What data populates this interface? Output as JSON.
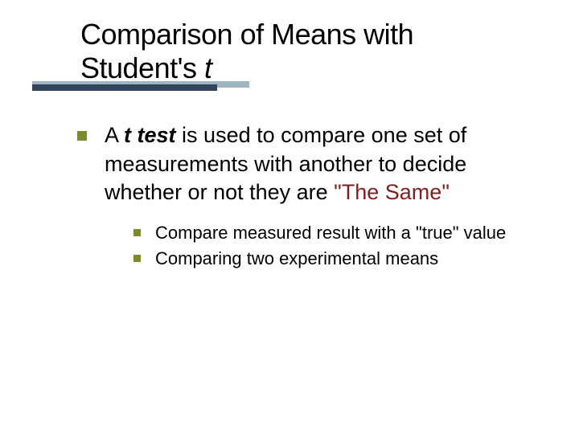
{
  "colors": {
    "bullet": "#7c8c2c",
    "quoted_text": "#7e1f20",
    "underline_light": "#9db6bf",
    "underline_dark": "#34445c",
    "text": "#000000",
    "background": "#ffffff"
  },
  "typography": {
    "title_fontsize": 36,
    "body_fontsize": 27,
    "sub_fontsize": 22,
    "font_family": "Verdana"
  },
  "title": {
    "line1": "Comparison of Means with",
    "line2_prefix": "Student's ",
    "line2_italic": "t"
  },
  "body": {
    "p1_prefix": "A ",
    "p1_bolditalic": "t test",
    "p1_mid": " is used to compare one set of measurements with another to decide whether or not they are ",
    "p1_quoted": "\"The Same\"",
    "sub1": "Compare measured result with a \"true\" value",
    "sub2": "Comparing two experimental means"
  }
}
